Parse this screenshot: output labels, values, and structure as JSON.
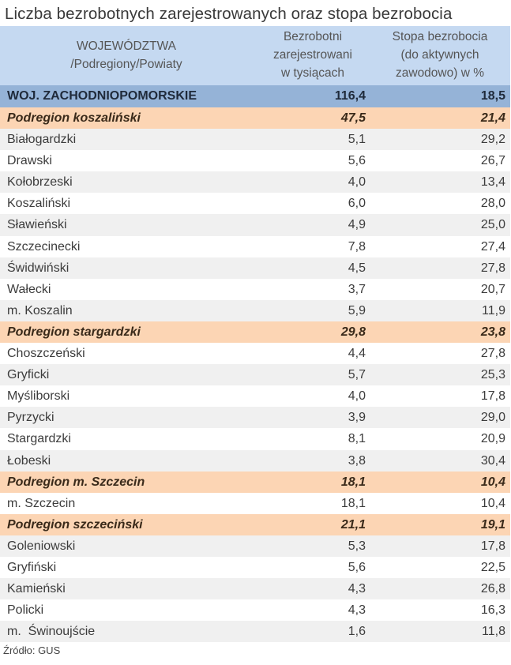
{
  "title": "Liczba bezrobotnych zarejestrowanych oraz stopa bezrobocia",
  "header": {
    "col1_line1": "WOJEWÓDZTWA",
    "col1_line2": "/Podregiony/Powiaty",
    "col2_line1": "Bezrobotni",
    "col2_line2": "zarejestrowani",
    "col2_line3": "w tysiącach",
    "col3_line1": "Stopa bezrobocia",
    "col3_line2": "(do aktywnych",
    "col3_line3": "zawodowo) w %"
  },
  "rows": [
    {
      "type": "total",
      "name": "WOJ. ZACHODNIOPOMORSKIE",
      "unemployed": "116,4",
      "rate": "18,5"
    },
    {
      "type": "sub",
      "name": "Podregion koszaliński",
      "unemployed": "47,5",
      "rate": "21,4"
    },
    {
      "type": "gray",
      "name": "Białogardzki",
      "unemployed": "5,1",
      "rate": "29,2"
    },
    {
      "type": "white",
      "name": "Drawski",
      "unemployed": "5,6",
      "rate": "26,7"
    },
    {
      "type": "gray",
      "name": "Kołobrzeski",
      "unemployed": "4,0",
      "rate": "13,4"
    },
    {
      "type": "white",
      "name": "Koszaliński",
      "unemployed": "6,0",
      "rate": "28,0"
    },
    {
      "type": "gray",
      "name": "Sławieński",
      "unemployed": "4,9",
      "rate": "25,0"
    },
    {
      "type": "white",
      "name": "Szczecinecki",
      "unemployed": "7,8",
      "rate": "27,4"
    },
    {
      "type": "gray",
      "name": "Świdwiński",
      "unemployed": "4,5",
      "rate": "27,8"
    },
    {
      "type": "white",
      "name": "Wałecki",
      "unemployed": "3,7",
      "rate": "20,7"
    },
    {
      "type": "gray",
      "name": "m. Koszalin",
      "unemployed": "5,9",
      "rate": "11,9"
    },
    {
      "type": "sub",
      "name": "Podregion stargardzki",
      "unemployed": "29,8",
      "rate": "23,8"
    },
    {
      "type": "white",
      "name": "Choszczeński",
      "unemployed": "4,4",
      "rate": "27,8"
    },
    {
      "type": "gray",
      "name": "Gryficki",
      "unemployed": "5,7",
      "rate": "25,3"
    },
    {
      "type": "white",
      "name": "Myśliborski",
      "unemployed": "4,0",
      "rate": "17,8"
    },
    {
      "type": "gray",
      "name": "Pyrzycki",
      "unemployed": "3,9",
      "rate": "29,0"
    },
    {
      "type": "white",
      "name": "Stargardzki",
      "unemployed": "8,1",
      "rate": "20,9"
    },
    {
      "type": "gray",
      "name": "Łobeski",
      "unemployed": "3,8",
      "rate": "30,4"
    },
    {
      "type": "sub",
      "name": "Podregion m. Szczecin",
      "unemployed": "18,1",
      "rate": "10,4"
    },
    {
      "type": "white",
      "name": "m. Szczecin",
      "unemployed": "18,1",
      "rate": "10,4"
    },
    {
      "type": "sub",
      "name": "Podregion szczeciński",
      "unemployed": "21,1",
      "rate": "19,1"
    },
    {
      "type": "gray",
      "name": "Goleniowski",
      "unemployed": "5,3",
      "rate": "17,8"
    },
    {
      "type": "white",
      "name": "Gryfiński",
      "unemployed": "5,6",
      "rate": "22,5"
    },
    {
      "type": "gray",
      "name": "Kamieński",
      "unemployed": "4,3",
      "rate": "26,8"
    },
    {
      "type": "white",
      "name": "Policki",
      "unemployed": "4,3",
      "rate": "16,3"
    },
    {
      "type": "gray",
      "name": "m.  Świnoujście",
      "unemployed": "1,6",
      "rate": "11,8"
    }
  ],
  "source": "Źródło: GUS",
  "colors": {
    "header_bg": "#c5d9f1",
    "total_bg": "#95b3d7",
    "subregion_bg": "#fcd5b4",
    "alt_row_bg": "#f0f0f0"
  }
}
